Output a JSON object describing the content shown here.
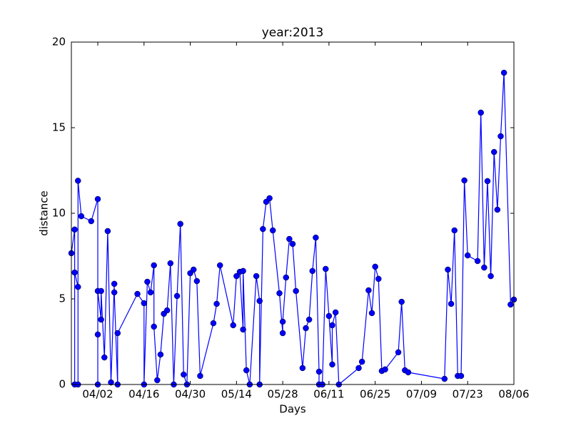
{
  "chart_data": {
    "type": "line",
    "title": "year:2013",
    "xlabel": "Days",
    "ylabel": "distance",
    "color": "#0000ff",
    "marker": "circle",
    "x": [
      "03/25",
      "03/26",
      "03/26",
      "03/26",
      "03/27",
      "03/27",
      "03/27",
      "03/28",
      "03/31",
      "04/02",
      "04/02",
      "04/02",
      "04/02",
      "04/03",
      "04/03",
      "04/04",
      "04/05",
      "04/06",
      "04/07",
      "04/07",
      "04/08",
      "04/08",
      "04/14",
      "04/16",
      "04/16",
      "04/17",
      "04/18",
      "04/19",
      "04/19",
      "04/20",
      "04/21",
      "04/22",
      "04/23",
      "04/24",
      "04/25",
      "04/26",
      "04/27",
      "04/28",
      "04/29",
      "04/30",
      "05/01",
      "05/02",
      "05/03",
      "05/07",
      "05/08",
      "05/09",
      "05/13",
      "05/14",
      "05/15",
      "05/16",
      "05/16",
      "05/17",
      "05/18",
      "05/20",
      "05/21",
      "05/21",
      "05/22",
      "05/23",
      "05/24",
      "05/25",
      "05/27",
      "05/28",
      "05/28",
      "05/29",
      "05/30",
      "05/31",
      "06/01",
      "06/03",
      "06/04",
      "06/05",
      "06/06",
      "06/07",
      "06/08",
      "06/08",
      "06/09",
      "06/10",
      "06/11",
      "06/12",
      "06/12",
      "06/13",
      "06/14",
      "06/20",
      "06/21",
      "06/23",
      "06/24",
      "06/25",
      "06/26",
      "06/27",
      "06/28",
      "07/02",
      "07/03",
      "07/04",
      "07/05",
      "07/16",
      "07/17",
      "07/18",
      "07/19",
      "07/20",
      "07/21",
      "07/22",
      "07/23",
      "07/26",
      "07/27",
      "07/28",
      "07/29",
      "07/30",
      "07/31",
      "08/01",
      "08/02",
      "08/03",
      "08/05",
      "08/06"
    ],
    "values": [
      7.67,
      9.05,
      0,
      6.54,
      5.7,
      0,
      11.9,
      9.83,
      9.54,
      10.83,
      2.92,
      0,
      5.46,
      3.79,
      5.46,
      1.58,
      8.96,
      0.12,
      5.88,
      5.38,
      0,
      3.0,
      5.29,
      4.75,
      0,
      6.0,
      5.38,
      6.96,
      3.38,
      0.25,
      1.75,
      4.13,
      4.33,
      7.08,
      0,
      5.17,
      9.38,
      0.58,
      0,
      6.5,
      6.71,
      6.04,
      0.5,
      3.58,
      4.71,
      6.96,
      3.46,
      6.33,
      6.58,
      3.21,
      6.63,
      0.83,
      0,
      6.33,
      4.88,
      0,
      9.08,
      10.67,
      10.88,
      9.0,
      5.33,
      3.0,
      3.67,
      6.25,
      8.5,
      8.21,
      5.46,
      0.96,
      3.29,
      3.79,
      6.63,
      8.58,
      0.75,
      0,
      0,
      6.75,
      4.0,
      1.17,
      3.46,
      4.21,
      0,
      0.96,
      1.33,
      5.5,
      4.17,
      6.88,
      6.17,
      0.79,
      0.88,
      1.88,
      4.83,
      0.83,
      0.71,
      0.33,
      6.71,
      4.71,
      9.0,
      0.5,
      0.5,
      11.92,
      7.54,
      7.21,
      15.88,
      6.83,
      11.88,
      6.33,
      13.58,
      10.21,
      14.5,
      18.21,
      4.67,
      4.96
    ],
    "xlim": [
      "03/25",
      "08/06"
    ],
    "xticks": [
      "04/02",
      "04/16",
      "04/30",
      "05/14",
      "05/28",
      "06/11",
      "06/25",
      "07/09",
      "07/23",
      "08/06"
    ],
    "ylim": [
      0,
      20
    ],
    "yticks": [
      0,
      5,
      10,
      15,
      20
    ]
  }
}
